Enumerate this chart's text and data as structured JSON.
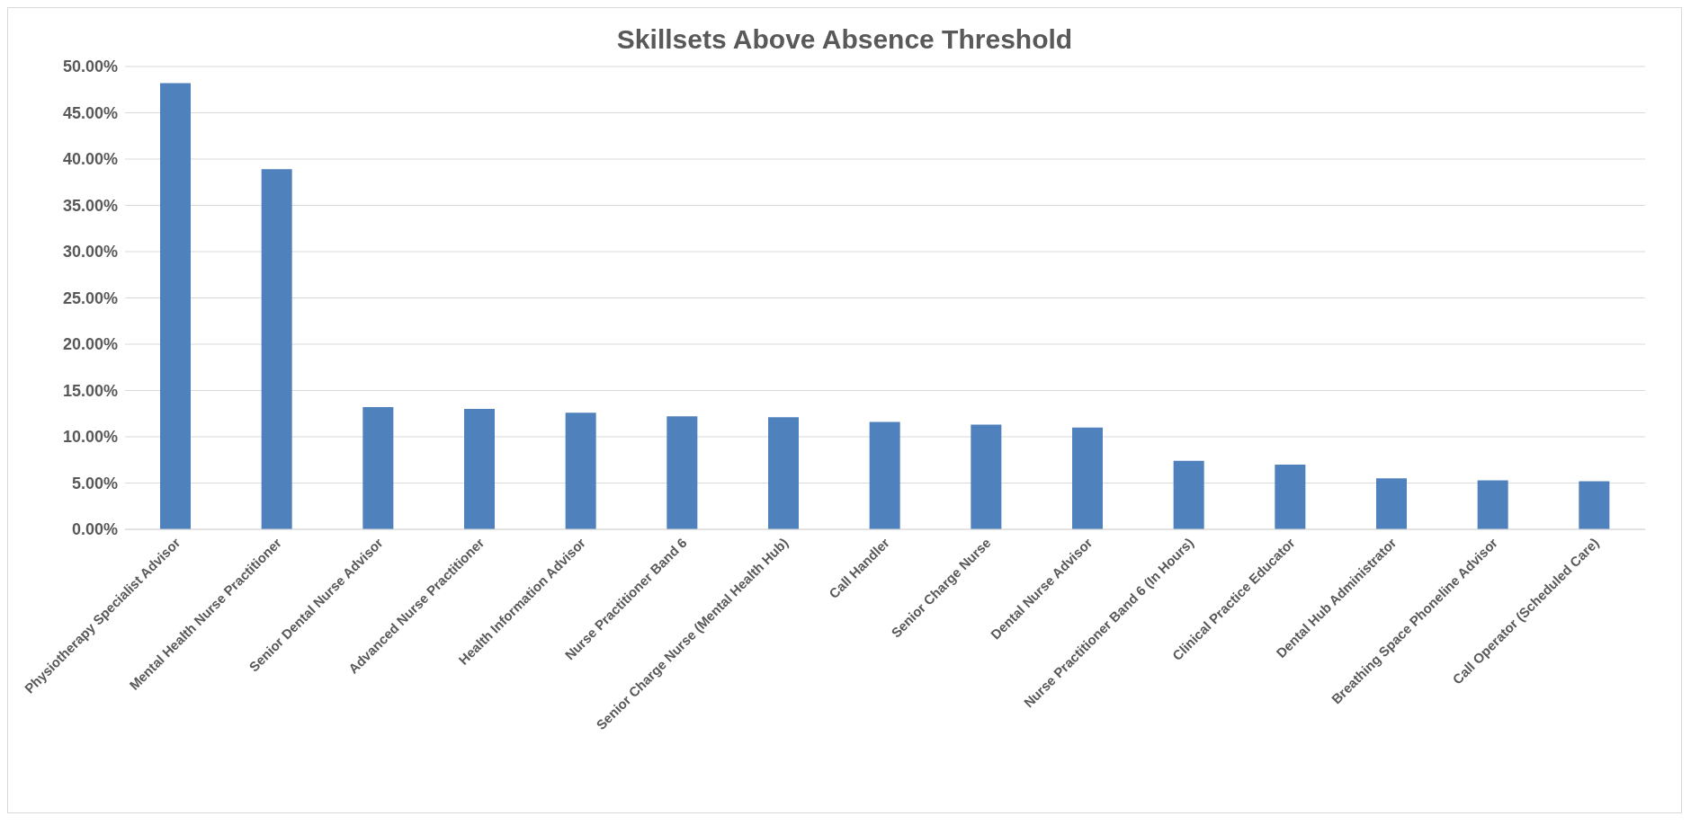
{
  "chart_data": {
    "type": "bar",
    "title": "Skillsets Above Absence Threshold",
    "categories": [
      "Physiotherapy Specialist Advisor",
      "Mental Health Nurse Practitioner",
      "Senior Dental Nurse Advisor",
      "Advanced Nurse Practitioner",
      "Health Information Advisor",
      "Nurse Practitioner Band 6",
      "Senior Charge Nurse (Mental Health Hub)",
      "Call Handler",
      "Senior Charge Nurse",
      "Dental Nurse Advisor",
      "Nurse Practitioner Band 6 (In Hours)",
      "Clinical Practice Educator",
      "Dental Hub Administrator",
      "Breathing Space Phoneline Advisor",
      "Call Operator (Scheduled Care)"
    ],
    "values": [
      48.2,
      38.9,
      13.2,
      13.0,
      12.6,
      12.2,
      12.1,
      11.6,
      11.3,
      11.0,
      7.4,
      7.0,
      5.5,
      5.3,
      5.2
    ],
    "color": "#4f81bd",
    "ylim": [
      0,
      50
    ],
    "yticks": [
      {
        "value": 0,
        "label": "0.00%"
      },
      {
        "value": 5,
        "label": "5.00%"
      },
      {
        "value": 10,
        "label": "10.00%"
      },
      {
        "value": 15,
        "label": "15.00%"
      },
      {
        "value": 20,
        "label": "20.00%"
      },
      {
        "value": 25,
        "label": "25.00%"
      },
      {
        "value": 30,
        "label": "30.00%"
      },
      {
        "value": 35,
        "label": "35.00%"
      },
      {
        "value": 40,
        "label": "40.00%"
      },
      {
        "value": 45,
        "label": "45.00%"
      },
      {
        "value": 50,
        "label": "50.00%"
      }
    ],
    "grid": "y"
  }
}
